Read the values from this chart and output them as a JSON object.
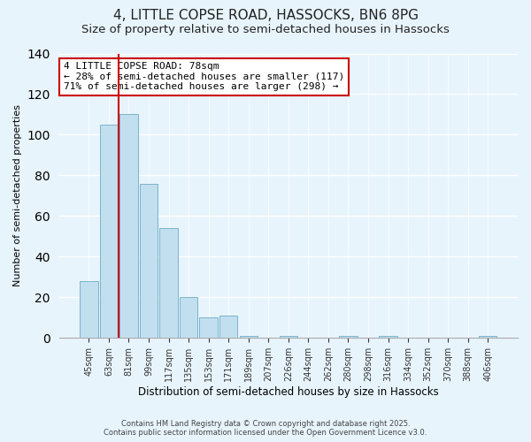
{
  "title": "4, LITTLE COPSE ROAD, HASSOCKS, BN6 8PG",
  "subtitle": "Size of property relative to semi-detached houses in Hassocks",
  "xlabel": "Distribution of semi-detached houses by size in Hassocks",
  "ylabel": "Number of semi-detached properties",
  "bar_labels": [
    "45sqm",
    "63sqm",
    "81sqm",
    "99sqm",
    "117sqm",
    "135sqm",
    "153sqm",
    "171sqm",
    "189sqm",
    "207sqm",
    "226sqm",
    "244sqm",
    "262sqm",
    "280sqm",
    "298sqm",
    "316sqm",
    "334sqm",
    "352sqm",
    "370sqm",
    "388sqm",
    "406sqm"
  ],
  "bar_values": [
    28,
    105,
    110,
    76,
    54,
    20,
    10,
    11,
    1,
    0,
    1,
    0,
    0,
    1,
    0,
    1,
    0,
    0,
    0,
    0,
    1
  ],
  "bar_color": "#c2dff0",
  "bar_edge_color": "#7ab4cc",
  "vline_x": 1.5,
  "vline_color": "#cc0000",
  "ylim": [
    0,
    140
  ],
  "yticks": [
    0,
    20,
    40,
    60,
    80,
    100,
    120,
    140
  ],
  "annotation_line1": "4 LITTLE COPSE ROAD: 78sqm",
  "annotation_line2": "← 28% of semi-detached houses are smaller (117)",
  "annotation_line3": "71% of semi-detached houses are larger (298) →",
  "annotation_box_color": "#ffffff",
  "annotation_box_edge": "#cc0000",
  "footer1": "Contains HM Land Registry data © Crown copyright and database right 2025.",
  "footer2": "Contains public sector information licensed under the Open Government Licence v3.0.",
  "bg_color": "#e8f4fc",
  "grid_color": "#ffffff",
  "title_fontsize": 11,
  "subtitle_fontsize": 9.5,
  "tick_fontsize": 7,
  "ylabel_fontsize": 8,
  "xlabel_fontsize": 8.5
}
